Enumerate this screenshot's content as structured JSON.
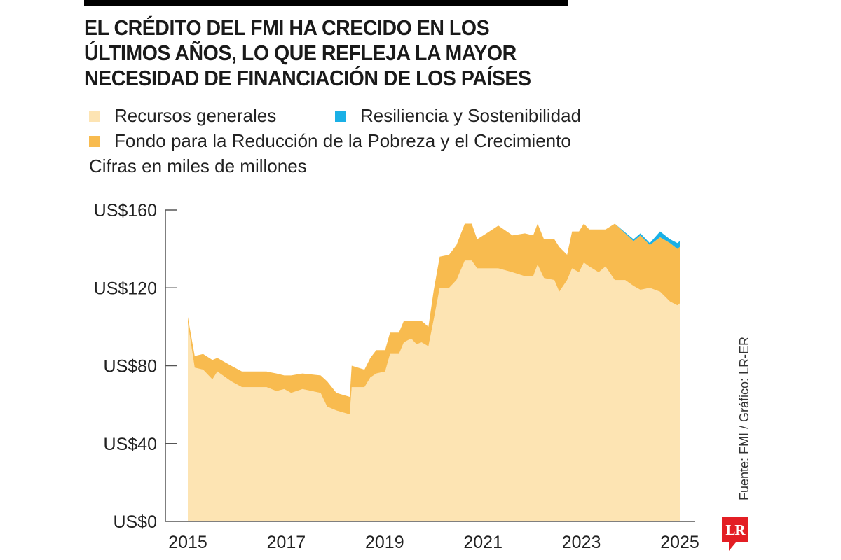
{
  "header": {
    "title_lines": [
      "EL CRÉDITO DEL FMI HA CRECIDO EN LOS",
      "ÚLTIMOS AÑOS, LO QUE REFLEJA LA MAYOR",
      "NECESIDAD DE FINANCIACIÓN DE LOS PAÍSES"
    ]
  },
  "legend": [
    {
      "label": "Recursos generales",
      "color": "#fde4b3"
    },
    {
      "label": "Resiliencia y Sostenibilidad",
      "color": "#1ab0e6"
    },
    {
      "label": "Fondo para la Reducción de la Pobreza y el Crecimiento",
      "color": "#f8bb4f"
    }
  ],
  "units_note": "Cifras en miles de millones",
  "source": "Fuente: FMI / Gráfico: LR-ER",
  "logo": "LR",
  "chart_data": {
    "type": "area",
    "stacked": true,
    "title": "EL CRÉDITO DEL FMI HA CRECIDO EN LOS ÚLTIMOS AÑOS, LO QUE REFLEJA LA MAYOR NECESIDAD DE FINANCIACIÓN DE LOS PAÍSES",
    "xlabel": "",
    "ylabel": "Cifras en miles de millones",
    "xlim": [
      2015,
      2025
    ],
    "ylim": [
      0,
      160
    ],
    "x_ticks": [
      "2015",
      "2017",
      "2019",
      "2021",
      "2023",
      "2025"
    ],
    "x_tick_values": [
      2015,
      2017,
      2019,
      2021,
      2023,
      2025
    ],
    "y_ticks": [
      "US$0",
      "US$40",
      "US$80",
      "US$120",
      "US$160"
    ],
    "y_tick_values": [
      0,
      40,
      80,
      120,
      160
    ],
    "grid": false,
    "legend_position": "top",
    "x": [
      2015.0,
      2015.14,
      2015.31,
      2015.5,
      2015.6,
      2015.88,
      2016.1,
      2016.3,
      2016.6,
      2016.8,
      2016.96,
      2017.1,
      2017.33,
      2017.7,
      2017.83,
      2018.02,
      2018.29,
      2018.33,
      2018.59,
      2018.71,
      2018.83,
      2019.01,
      2019.11,
      2019.29,
      2019.39,
      2019.54,
      2019.65,
      2019.75,
      2019.89,
      2020.0,
      2020.12,
      2020.31,
      2020.46,
      2020.63,
      2020.77,
      2020.88,
      2021.07,
      2021.31,
      2021.6,
      2021.85,
      2022.02,
      2022.11,
      2022.24,
      2022.45,
      2022.55,
      2022.71,
      2022.81,
      2022.95,
      2023.05,
      2023.16,
      2023.35,
      2023.49,
      2023.68,
      2023.89,
      2024.06,
      2024.2,
      2024.39,
      2024.6,
      2024.8,
      2024.95,
      2025.0
    ],
    "series": [
      {
        "name": "Recursos generales",
        "color": "#fde4b3",
        "values": [
          102,
          79,
          78,
          73,
          77,
          72,
          69,
          69,
          69,
          67,
          68,
          66,
          68,
          66,
          59,
          57,
          55,
          69,
          69,
          74,
          76,
          77,
          86,
          86,
          92,
          94,
          91,
          92,
          90,
          104,
          120,
          120,
          124,
          134,
          134,
          130,
          130,
          130,
          128,
          126,
          126,
          132,
          125,
          124,
          118,
          124,
          130,
          128,
          133,
          131,
          128,
          131,
          124,
          124,
          121,
          119,
          120,
          118,
          113,
          111,
          112
        ]
      },
      {
        "name": "Fondo para la Reducción de la Pobreza y el Crecimiento",
        "color": "#f8bb4f",
        "values": [
          3,
          6,
          8,
          10,
          7,
          8,
          8,
          8,
          8,
          9,
          7,
          9,
          8,
          9,
          13,
          9,
          9,
          11,
          9,
          10,
          12,
          11,
          11,
          11,
          11,
          9,
          12,
          11,
          10,
          15,
          16,
          17,
          18,
          19,
          19,
          15,
          18,
          22,
          19,
          22,
          21,
          21,
          20,
          21,
          23,
          13,
          19,
          21,
          20,
          19,
          22,
          19,
          29,
          24,
          23,
          28,
          22,
          28,
          30,
          29,
          29
        ]
      },
      {
        "name": "Resiliencia y Sostenibilidad",
        "color": "#1ab0e6",
        "values": [
          0,
          0,
          0,
          0,
          0,
          0,
          0,
          0,
          0,
          0,
          0,
          0,
          0,
          0,
          0,
          0,
          0,
          0,
          0,
          0,
          0,
          0,
          0,
          0,
          0,
          0,
          0,
          0,
          0,
          0,
          0,
          0,
          0,
          0,
          0,
          0,
          0,
          0,
          0,
          0,
          0,
          0,
          0,
          0,
          0,
          0,
          0,
          0,
          0,
          0,
          0,
          0,
          0,
          0.5,
          1,
          1,
          1,
          3,
          2,
          3,
          3
        ]
      }
    ]
  }
}
